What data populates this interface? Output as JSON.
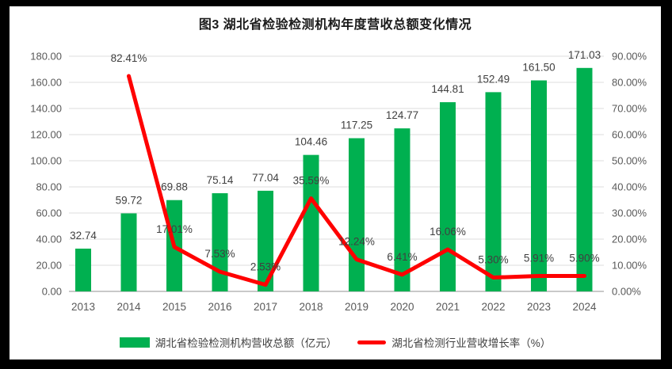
{
  "title": "图3 湖北省检验检测机构年度营收总额变化情况",
  "chart_data": {
    "type": "bar",
    "subtype": "combo-bar-line",
    "title": "图3 湖北省检验检测机构年度营收总额变化情况",
    "categories": [
      "2013",
      "2014",
      "2015",
      "2016",
      "2017",
      "2018",
      "2019",
      "2020",
      "2021",
      "2022",
      "2023",
      "2024"
    ],
    "series": [
      {
        "name": "湖北省检验检测机构营收总额（亿元）",
        "type": "bar",
        "axis": "left",
        "color": "#00B050",
        "values": [
          32.74,
          59.72,
          69.88,
          75.14,
          77.04,
          104.46,
          117.25,
          124.77,
          144.81,
          152.49,
          161.5,
          171.03
        ],
        "labels": [
          "32.74",
          "59.72",
          "69.88",
          "75.14",
          "77.04",
          "104.46",
          "117.25",
          "124.77",
          "144.81",
          "152.49",
          "161.50",
          "171.03"
        ]
      },
      {
        "name": "湖北省检测行业营收增长率（%）",
        "type": "line",
        "axis": "right",
        "color": "#FF0000",
        "values": [
          null,
          82.41,
          17.01,
          7.53,
          2.53,
          35.59,
          12.24,
          6.41,
          16.06,
          5.3,
          5.91,
          5.9
        ],
        "labels": [
          null,
          "82.41%",
          "17.01%",
          "7.53%",
          "2.53%",
          "35.59%",
          "12.24%",
          "6.41%",
          "16.06%",
          "5.30%",
          "5.91%",
          "5.90%"
        ]
      }
    ],
    "left_axis": {
      "min": 0,
      "max": 180,
      "step": 20,
      "tick_labels": [
        "0.00",
        "20.00",
        "40.00",
        "60.00",
        "80.00",
        "100.00",
        "120.00",
        "140.00",
        "160.00",
        "180.00"
      ]
    },
    "right_axis": {
      "min": 0,
      "max": 90,
      "step": 10,
      "tick_labels": [
        "0.00%",
        "10.00%",
        "20.00%",
        "30.00%",
        "40.00%",
        "50.00%",
        "60.00%",
        "70.00%",
        "80.00%",
        "90.00%"
      ]
    },
    "grid": true,
    "legend_position": "bottom"
  },
  "legend": {
    "items": [
      {
        "label": "湖北省检验检测机构营收总额（亿元）",
        "swatch": "bar-swatch",
        "color": "#00B050"
      },
      {
        "label": "湖北省检测行业营收增长率（%）",
        "swatch": "line-swatch",
        "color": "#FF0000"
      }
    ]
  },
  "colors": {
    "bar": "#00B050",
    "line": "#FF0000",
    "grid": "#DCDCDC",
    "axis_line": "#C9C9C9",
    "tick_text": "#595959",
    "label_text": "#404040",
    "title_text": "#1A1A1A",
    "panel_background": "#FFFFFF",
    "frame_background": "#000000"
  }
}
